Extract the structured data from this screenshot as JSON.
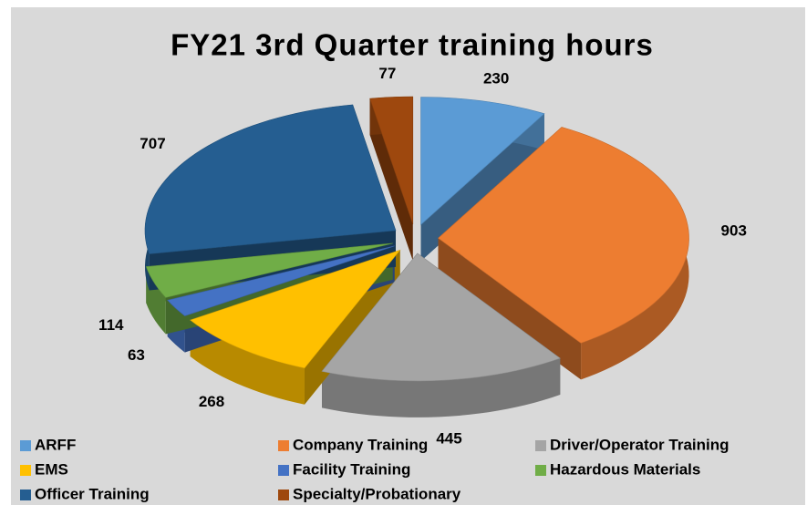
{
  "chart_data": {
    "type": "pie",
    "title": "FY21 3rd Quarter training hours",
    "categories": [
      "ARFF",
      "Company Training",
      "Driver/Operator Training",
      "EMS",
      "Facility Training",
      "Hazardous Materials",
      "Officer Training",
      "Specialty/Probationary"
    ],
    "values": [
      230,
      903,
      445,
      268,
      63,
      114,
      707,
      77
    ],
    "colors": [
      "#5b9bd5",
      "#ed7d31",
      "#a5a5a5",
      "#ffc000",
      "#4472c4",
      "#70ad47",
      "#255e91",
      "#9e480e"
    ]
  }
}
